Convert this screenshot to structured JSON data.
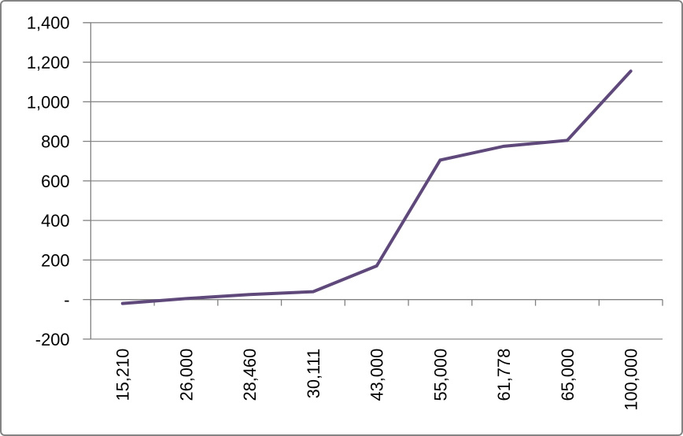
{
  "chart_data": {
    "type": "line",
    "title": "",
    "xlabel": "",
    "ylabel": "",
    "categories": [
      "15,210",
      "26,000",
      "28,460",
      "30,111",
      "43,000",
      "55,000",
      "61,778",
      "65,000",
      "100,000"
    ],
    "series": [
      {
        "name": "",
        "values": [
          -20,
          5,
          25,
          40,
          170,
          705,
          775,
          805,
          1155
        ]
      }
    ],
    "ylim": [
      -200,
      1400
    ],
    "y_tick_step": 200,
    "y_ticks": [
      {
        "value": 1400,
        "label": "1,400"
      },
      {
        "value": 1200,
        "label": "1,200"
      },
      {
        "value": 1000,
        "label": "1,000"
      },
      {
        "value": 800,
        "label": "800"
      },
      {
        "value": 600,
        "label": "600"
      },
      {
        "value": 400,
        "label": "400"
      },
      {
        "value": 200,
        "label": "200"
      },
      {
        "value": 0,
        "label": "-"
      },
      {
        "value": -200,
        "label": "-200"
      }
    ],
    "x_axis_cross_value": 0,
    "x_labels_rotation_deg": -90,
    "grid": true,
    "legend_position": "none",
    "theme": {
      "line_color": "#5F497A",
      "line_width": 4,
      "grid_color": "#8C8C8C",
      "axis_color": "#808080",
      "text_color": "#000000",
      "background_color": "#FFFFFF",
      "frame_border_color": "#848484"
    }
  }
}
